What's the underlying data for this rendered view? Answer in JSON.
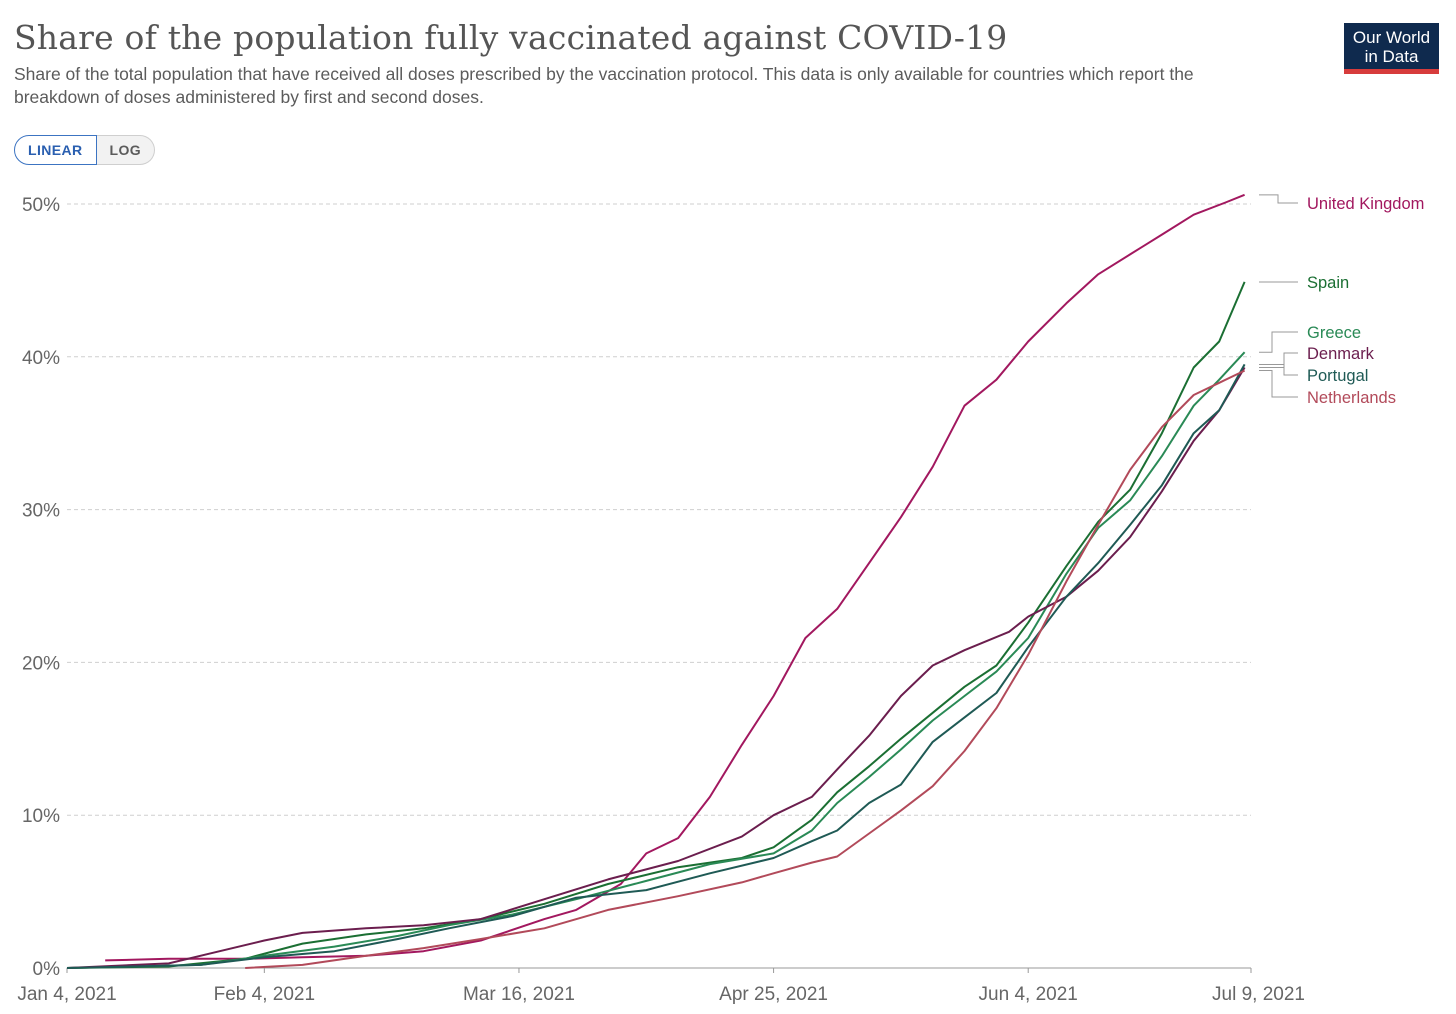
{
  "header": {
    "title": "Share of the population fully vaccinated against COVID-19",
    "subtitle": "Share of the total population that have received all doses prescribed by the vaccination protocol. This data is only available for countries which report the breakdown of doses administered by first and second doses.",
    "logo_line1": "Our World",
    "logo_line2": "in Data"
  },
  "controls": {
    "linear_label": "LINEAR",
    "log_label": "LOG",
    "selected": "LINEAR"
  },
  "chart_data": {
    "type": "line",
    "scale": "linear",
    "ylim": [
      0,
      50
    ],
    "y_ticks": [
      {
        "value": 0,
        "label": "0%"
      },
      {
        "value": 10,
        "label": "10%"
      },
      {
        "value": 20,
        "label": "20%"
      },
      {
        "value": 30,
        "label": "30%"
      },
      {
        "value": 40,
        "label": "40%"
      },
      {
        "value": 50,
        "label": "50%"
      }
    ],
    "x_ticks": [
      {
        "value": "2021-01-04",
        "label": "Jan 4, 2021"
      },
      {
        "value": "2021-02-04",
        "label": "Feb 4, 2021"
      },
      {
        "value": "2021-03-16",
        "label": "Mar 16, 2021"
      },
      {
        "value": "2021-04-25",
        "label": "Apr 25, 2021"
      },
      {
        "value": "2021-06-04",
        "label": "Jun 4, 2021"
      },
      {
        "value": "2021-07-09",
        "label": "Jul 9, 2021"
      }
    ],
    "grid": true,
    "legend": "right",
    "series": [
      {
        "name": "United Kingdom",
        "color": "#a2185f",
        "points": [
          [
            "2021-01-10",
            0.5
          ],
          [
            "2021-01-20",
            0.6
          ],
          [
            "2021-02-01",
            0.6
          ],
          [
            "2021-02-10",
            0.7
          ],
          [
            "2021-02-20",
            0.8
          ],
          [
            "2021-03-01",
            1.1
          ],
          [
            "2021-03-10",
            1.8
          ],
          [
            "2021-03-20",
            3.2
          ],
          [
            "2021-03-25",
            3.8
          ],
          [
            "2021-04-01",
            5.5
          ],
          [
            "2021-04-05",
            7.5
          ],
          [
            "2021-04-10",
            8.5
          ],
          [
            "2021-04-15",
            11.2
          ],
          [
            "2021-04-20",
            14.6
          ],
          [
            "2021-04-25",
            17.8
          ],
          [
            "2021-04-30",
            21.6
          ],
          [
            "2021-05-05",
            23.5
          ],
          [
            "2021-05-10",
            26.5
          ],
          [
            "2021-05-15",
            29.5
          ],
          [
            "2021-05-20",
            32.8
          ],
          [
            "2021-05-25",
            36.8
          ],
          [
            "2021-05-30",
            38.5
          ],
          [
            "2021-06-04",
            41.0
          ],
          [
            "2021-06-10",
            43.5
          ],
          [
            "2021-06-15",
            45.4
          ],
          [
            "2021-06-20",
            46.7
          ],
          [
            "2021-06-25",
            48.0
          ],
          [
            "2021-06-30",
            49.3
          ],
          [
            "2021-07-05",
            50.1
          ],
          [
            "2021-07-08",
            50.6
          ]
        ]
      },
      {
        "name": "Spain",
        "color": "#1b6f33",
        "points": [
          [
            "2021-01-04",
            0.0
          ],
          [
            "2021-01-20",
            0.1
          ],
          [
            "2021-02-01",
            0.6
          ],
          [
            "2021-02-10",
            1.6
          ],
          [
            "2021-02-20",
            2.2
          ],
          [
            "2021-03-01",
            2.6
          ],
          [
            "2021-03-10",
            3.2
          ],
          [
            "2021-03-20",
            4.2
          ],
          [
            "2021-03-30",
            5.5
          ],
          [
            "2021-04-10",
            6.6
          ],
          [
            "2021-04-20",
            7.2
          ],
          [
            "2021-04-25",
            7.9
          ],
          [
            "2021-05-01",
            9.7
          ],
          [
            "2021-05-05",
            11.5
          ],
          [
            "2021-05-10",
            13.2
          ],
          [
            "2021-05-15",
            15.0
          ],
          [
            "2021-05-20",
            16.7
          ],
          [
            "2021-05-25",
            18.4
          ],
          [
            "2021-05-30",
            19.8
          ],
          [
            "2021-06-04",
            22.6
          ],
          [
            "2021-06-10",
            26.3
          ],
          [
            "2021-06-15",
            29.2
          ],
          [
            "2021-06-20",
            31.3
          ],
          [
            "2021-06-25",
            35.0
          ],
          [
            "2021-06-30",
            39.3
          ],
          [
            "2021-07-04",
            41.0
          ],
          [
            "2021-07-08",
            44.9
          ]
        ]
      },
      {
        "name": "Greece",
        "color": "#2a8a56",
        "points": [
          [
            "2021-01-04",
            0.0
          ],
          [
            "2021-01-25",
            0.2
          ],
          [
            "2021-02-04",
            0.8
          ],
          [
            "2021-02-15",
            1.4
          ],
          [
            "2021-02-25",
            2.1
          ],
          [
            "2021-03-05",
            2.8
          ],
          [
            "2021-03-15",
            3.5
          ],
          [
            "2021-03-25",
            4.5
          ],
          [
            "2021-04-05",
            5.7
          ],
          [
            "2021-04-15",
            6.8
          ],
          [
            "2021-04-25",
            7.5
          ],
          [
            "2021-05-01",
            9.0
          ],
          [
            "2021-05-05",
            10.8
          ],
          [
            "2021-05-10",
            12.5
          ],
          [
            "2021-05-15",
            14.3
          ],
          [
            "2021-05-20",
            16.2
          ],
          [
            "2021-05-25",
            17.8
          ],
          [
            "2021-05-30",
            19.4
          ],
          [
            "2021-06-04",
            21.6
          ],
          [
            "2021-06-10",
            25.8
          ],
          [
            "2021-06-15",
            28.8
          ],
          [
            "2021-06-20",
            30.6
          ],
          [
            "2021-06-25",
            33.5
          ],
          [
            "2021-06-30",
            36.8
          ],
          [
            "2021-07-04",
            38.5
          ],
          [
            "2021-07-08",
            40.3
          ]
        ]
      },
      {
        "name": "Denmark",
        "color": "#6b1e4e",
        "points": [
          [
            "2021-01-04",
            0.0
          ],
          [
            "2021-01-20",
            0.3
          ],
          [
            "2021-01-27",
            1.0
          ],
          [
            "2021-02-04",
            1.8
          ],
          [
            "2021-02-10",
            2.3
          ],
          [
            "2021-02-20",
            2.6
          ],
          [
            "2021-03-01",
            2.8
          ],
          [
            "2021-03-10",
            3.2
          ],
          [
            "2021-03-20",
            4.5
          ],
          [
            "2021-03-30",
            5.8
          ],
          [
            "2021-04-10",
            7.0
          ],
          [
            "2021-04-20",
            8.6
          ],
          [
            "2021-04-25",
            10.0
          ],
          [
            "2021-05-01",
            11.2
          ],
          [
            "2021-05-05",
            13.0
          ],
          [
            "2021-05-10",
            15.2
          ],
          [
            "2021-05-15",
            17.8
          ],
          [
            "2021-05-20",
            19.8
          ],
          [
            "2021-05-25",
            20.8
          ],
          [
            "2021-06-01",
            22.0
          ],
          [
            "2021-06-04",
            23.0
          ],
          [
            "2021-06-10",
            24.3
          ],
          [
            "2021-06-15",
            26.0
          ],
          [
            "2021-06-20",
            28.2
          ],
          [
            "2021-06-25",
            31.2
          ],
          [
            "2021-06-30",
            34.5
          ],
          [
            "2021-07-04",
            36.5
          ],
          [
            "2021-07-08",
            39.3
          ]
        ]
      },
      {
        "name": "Portugal",
        "color": "#1f5a55",
        "points": [
          [
            "2021-01-04",
            0.0
          ],
          [
            "2021-01-25",
            0.2
          ],
          [
            "2021-02-04",
            0.7
          ],
          [
            "2021-02-15",
            1.1
          ],
          [
            "2021-02-25",
            1.9
          ],
          [
            "2021-03-05",
            2.6
          ],
          [
            "2021-03-15",
            3.4
          ],
          [
            "2021-03-25",
            4.6
          ],
          [
            "2021-04-05",
            5.1
          ],
          [
            "2021-04-15",
            6.2
          ],
          [
            "2021-04-25",
            7.2
          ],
          [
            "2021-05-01",
            8.3
          ],
          [
            "2021-05-05",
            9.0
          ],
          [
            "2021-05-10",
            10.8
          ],
          [
            "2021-05-15",
            12.0
          ],
          [
            "2021-05-20",
            14.8
          ],
          [
            "2021-05-25",
            16.4
          ],
          [
            "2021-05-30",
            18.0
          ],
          [
            "2021-06-04",
            21.0
          ],
          [
            "2021-06-10",
            24.3
          ],
          [
            "2021-06-15",
            26.5
          ],
          [
            "2021-06-20",
            29.0
          ],
          [
            "2021-06-25",
            31.6
          ],
          [
            "2021-06-30",
            35.0
          ],
          [
            "2021-07-04",
            36.5
          ],
          [
            "2021-07-08",
            39.5
          ]
        ]
      },
      {
        "name": "Netherlands",
        "color": "#b24a5a",
        "points": [
          [
            "2021-02-01",
            0.0
          ],
          [
            "2021-02-10",
            0.2
          ],
          [
            "2021-02-20",
            0.8
          ],
          [
            "2021-03-01",
            1.3
          ],
          [
            "2021-03-10",
            1.9
          ],
          [
            "2021-03-20",
            2.6
          ],
          [
            "2021-03-30",
            3.8
          ],
          [
            "2021-04-10",
            4.7
          ],
          [
            "2021-04-20",
            5.6
          ],
          [
            "2021-04-25",
            6.2
          ],
          [
            "2021-05-01",
            6.9
          ],
          [
            "2021-05-05",
            7.3
          ],
          [
            "2021-05-10",
            8.8
          ],
          [
            "2021-05-15",
            10.3
          ],
          [
            "2021-05-20",
            11.9
          ],
          [
            "2021-05-25",
            14.2
          ],
          [
            "2021-05-30",
            17.0
          ],
          [
            "2021-06-04",
            20.5
          ],
          [
            "2021-06-10",
            25.3
          ],
          [
            "2021-06-15",
            29.0
          ],
          [
            "2021-06-20",
            32.6
          ],
          [
            "2021-06-25",
            35.4
          ],
          [
            "2021-06-30",
            37.5
          ],
          [
            "2021-07-04",
            38.3
          ],
          [
            "2021-07-08",
            39.1
          ]
        ]
      }
    ]
  }
}
